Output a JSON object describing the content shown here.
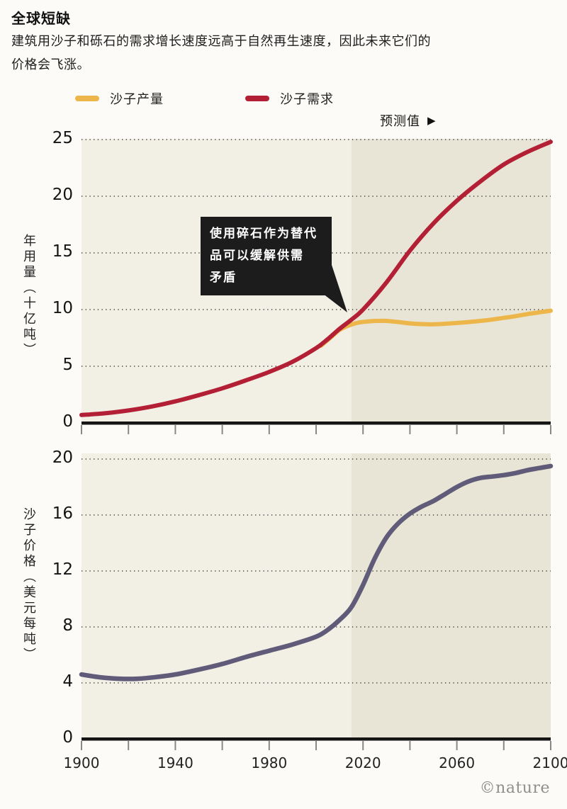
{
  "title": "全球短缺",
  "subtitle": "建筑用沙子和砾石的需求增长速度远高于自然再生速度，因此未来它们的价格会飞涨。",
  "forecast_label": "预测值",
  "forecast_arrow": "▶",
  "watermark": "©nature",
  "colors": {
    "plot_bg": "#f2efe5",
    "forecast_bg": "#e9e5d6",
    "production": "#ecb64a",
    "demand": "#b32035",
    "price": "#5f5b78",
    "annotation_bg": "#1c1c1c",
    "axis": "#151515"
  },
  "legend": {
    "position": "top",
    "items": [
      {
        "label": "沙子产量",
        "color": "#ecb64a"
      },
      {
        "label": "沙子需求",
        "color": "#b32035"
      }
    ]
  },
  "annotation": {
    "lines": [
      "使用碎石作为替代",
      "品可以缓解供需",
      "矛盾"
    ],
    "points_to": {
      "year": 2013,
      "value": 9
    }
  },
  "chart_data": [
    {
      "id": "usage",
      "type": "line",
      "title": "",
      "xlabel": "",
      "ylabel": "年用量（十亿吨）",
      "x_range": [
        1900,
        2100
      ],
      "y_range": [
        0,
        25
      ],
      "y_ticks": [
        0,
        5,
        10,
        15,
        20,
        25
      ],
      "x_ticks_every": 20,
      "x_tick_labels": null,
      "grid": true,
      "forecast_start": 2015,
      "series": [
        {
          "name": "沙子产量",
          "color": "#ecb64a",
          "points": [
            [
              2002,
              6.8
            ],
            [
              2006,
              7.5
            ],
            [
              2010,
              8.2
            ],
            [
              2014,
              8.6
            ],
            [
              2018,
              8.85
            ],
            [
              2022,
              8.95
            ],
            [
              2026,
              9.0
            ],
            [
              2030,
              9.0
            ],
            [
              2035,
              8.9
            ],
            [
              2040,
              8.78
            ],
            [
              2045,
              8.72
            ],
            [
              2050,
              8.7
            ],
            [
              2055,
              8.75
            ],
            [
              2060,
              8.82
            ],
            [
              2065,
              8.9
            ],
            [
              2070,
              9.0
            ],
            [
              2075,
              9.12
            ],
            [
              2080,
              9.27
            ],
            [
              2085,
              9.42
            ],
            [
              2090,
              9.6
            ],
            [
              2095,
              9.75
            ],
            [
              2100,
              9.9
            ]
          ]
        },
        {
          "name": "沙子需求",
          "color": "#b32035",
          "points": [
            [
              1900,
              0.7
            ],
            [
              1910,
              0.85
            ],
            [
              1920,
              1.1
            ],
            [
              1930,
              1.45
            ],
            [
              1940,
              1.9
            ],
            [
              1950,
              2.45
            ],
            [
              1960,
              3.05
            ],
            [
              1970,
              3.75
            ],
            [
              1980,
              4.5
            ],
            [
              1990,
              5.4
            ],
            [
              2000,
              6.6
            ],
            [
              2005,
              7.4
            ],
            [
              2010,
              8.3
            ],
            [
              2015,
              9.1
            ],
            [
              2020,
              10.0
            ],
            [
              2030,
              12.4
            ],
            [
              2040,
              15.2
            ],
            [
              2050,
              17.6
            ],
            [
              2060,
              19.6
            ],
            [
              2070,
              21.3
            ],
            [
              2080,
              22.8
            ],
            [
              2090,
              23.9
            ],
            [
              2100,
              24.8
            ]
          ]
        }
      ]
    },
    {
      "id": "price",
      "type": "line",
      "title": "",
      "xlabel": "",
      "ylabel": "沙子价格（美元每吨）",
      "x_range": [
        1900,
        2100
      ],
      "y_range": [
        0,
        20
      ],
      "y_ticks": [
        0,
        4,
        8,
        12,
        16,
        20
      ],
      "x_ticks_every": 20,
      "x_tick_labels": [
        "1900",
        "1940",
        "1980",
        "2020",
        "2060",
        "2100"
      ],
      "grid": true,
      "forecast_start": 2015,
      "series": [
        {
          "name": "沙子价格",
          "color": "#5f5b78",
          "points": [
            [
              1900,
              4.6
            ],
            [
              1908,
              4.4
            ],
            [
              1916,
              4.3
            ],
            [
              1924,
              4.3
            ],
            [
              1932,
              4.42
            ],
            [
              1940,
              4.6
            ],
            [
              1950,
              4.95
            ],
            [
              1960,
              5.35
            ],
            [
              1970,
              5.85
            ],
            [
              1980,
              6.3
            ],
            [
              1990,
              6.75
            ],
            [
              2000,
              7.3
            ],
            [
              2005,
              7.8
            ],
            [
              2010,
              8.5
            ],
            [
              2015,
              9.4
            ],
            [
              2020,
              11.0
            ],
            [
              2025,
              12.9
            ],
            [
              2030,
              14.4
            ],
            [
              2035,
              15.4
            ],
            [
              2040,
              16.1
            ],
            [
              2045,
              16.6
            ],
            [
              2050,
              17.0
            ],
            [
              2055,
              17.5
            ],
            [
              2060,
              18.0
            ],
            [
              2065,
              18.4
            ],
            [
              2070,
              18.65
            ],
            [
              2075,
              18.75
            ],
            [
              2080,
              18.85
            ],
            [
              2085,
              19.0
            ],
            [
              2090,
              19.2
            ],
            [
              2095,
              19.35
            ],
            [
              2100,
              19.5
            ]
          ]
        }
      ]
    }
  ]
}
